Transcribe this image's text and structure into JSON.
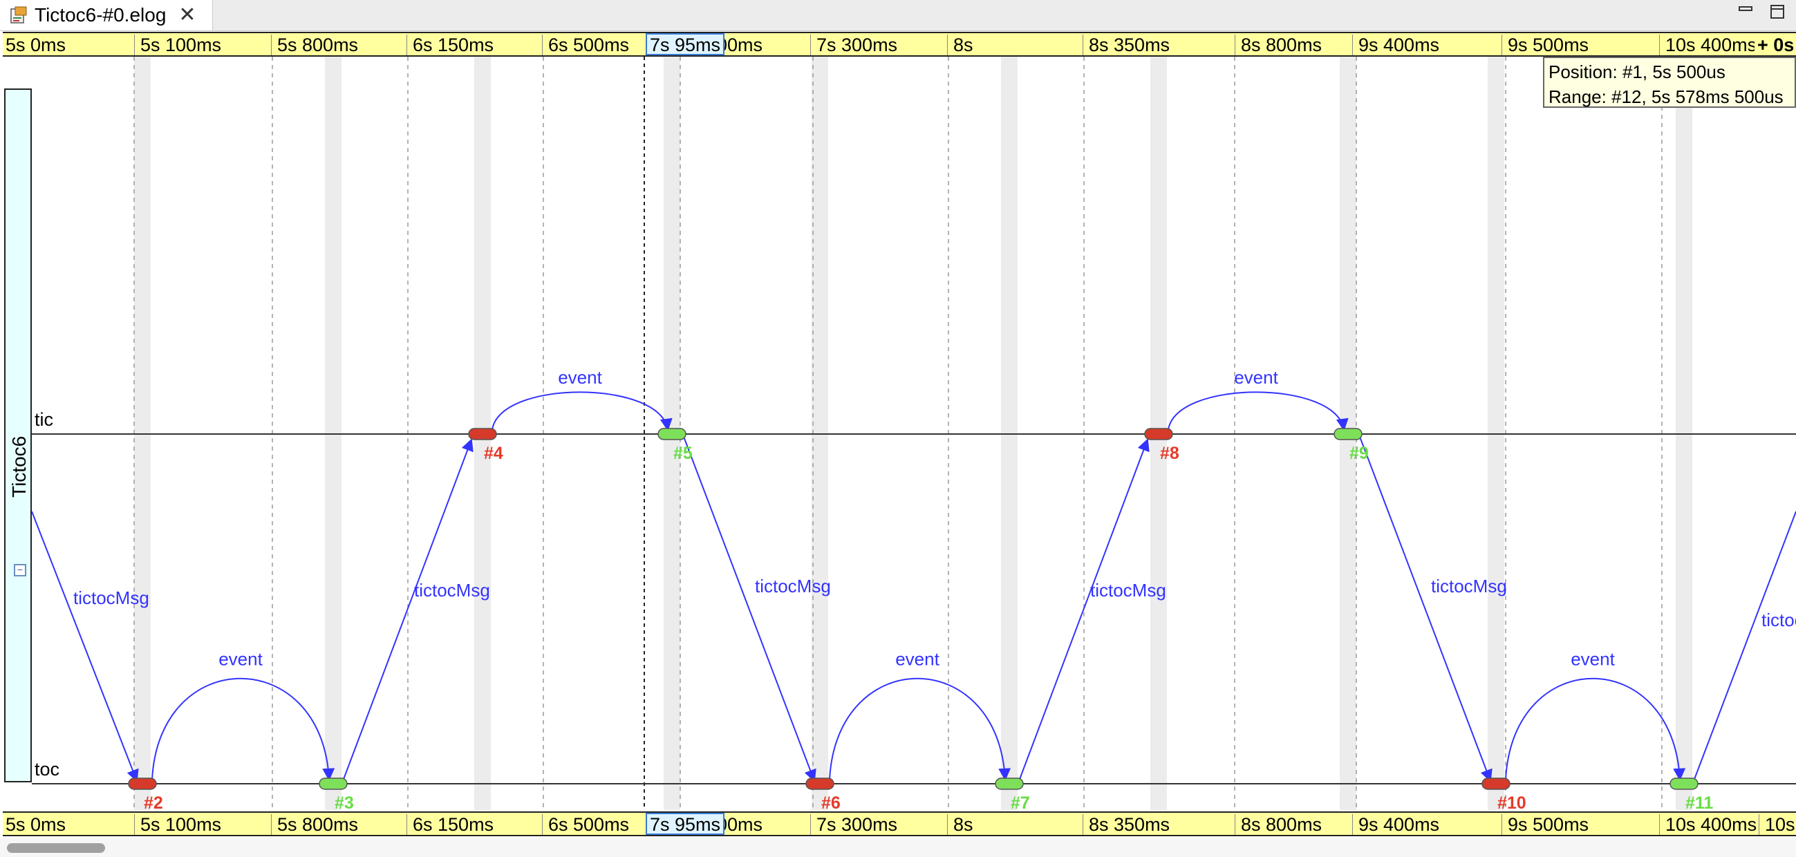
{
  "tab": {
    "title": "Tictoc6-#0.elog",
    "close_glyph": "✕",
    "icon": "elog-file-icon"
  },
  "window_controls": {
    "minimize": "minimize-icon",
    "maximize": "maximize-icon"
  },
  "ruler": {
    "ticks": [
      "5s 0ms",
      "5s 100ms",
      "5s 800ms",
      "6s 150ms",
      "6s 500ms",
      "7s 95ms",
      "7s 300ms",
      "8s",
      "8s 350ms",
      "8s 800ms",
      "9s 400ms",
      "9s 500ms",
      "10s 400ms"
    ],
    "cursor_label": "7s 95ms",
    "hidden_partial": "00ms",
    "top_end_label": "+ 0s",
    "bottom_end_label": "10s"
  },
  "info": {
    "position": "Position: #1, 5s 500us",
    "range": "Range: #12, 5s 578ms 500us"
  },
  "module": {
    "name": "Tictoc6",
    "collapse_glyph": "−"
  },
  "axes": [
    {
      "name": "tic"
    },
    {
      "name": "toc"
    }
  ],
  "events": [
    {
      "id": "#2",
      "axis": "toc",
      "kind": "red"
    },
    {
      "id": "#3",
      "axis": "toc",
      "kind": "green"
    },
    {
      "id": "#4",
      "axis": "tic",
      "kind": "red"
    },
    {
      "id": "#5",
      "axis": "tic",
      "kind": "green"
    },
    {
      "id": "#6",
      "axis": "toc",
      "kind": "red"
    },
    {
      "id": "#7",
      "axis": "toc",
      "kind": "green"
    },
    {
      "id": "#8",
      "axis": "tic",
      "kind": "red"
    },
    {
      "id": "#9",
      "axis": "tic",
      "kind": "green"
    },
    {
      "id": "#10",
      "axis": "toc",
      "kind": "red"
    },
    {
      "id": "#11",
      "axis": "toc",
      "kind": "green"
    }
  ],
  "messages": [
    {
      "label": "tictocMsg",
      "type": "send"
    },
    {
      "label": "event",
      "type": "self"
    },
    {
      "label": "tictocMsg",
      "type": "send"
    },
    {
      "label": "event",
      "type": "self"
    },
    {
      "label": "tictocMsg",
      "type": "send"
    },
    {
      "label": "event",
      "type": "self"
    },
    {
      "label": "tictocMsg",
      "type": "send"
    },
    {
      "label": "event",
      "type": "self"
    },
    {
      "label": "tictocMsg",
      "type": "send"
    },
    {
      "label": "event",
      "type": "self"
    },
    {
      "label": "tictocMsg",
      "type": "send"
    }
  ],
  "colors": {
    "ruler_bg": "#ffff9f",
    "message": "#3333ff",
    "event_red": "#d63a2a",
    "event_green": "#7ee05a",
    "label_red": "#e53a2a",
    "label_green": "#66dd44",
    "gutter": "#ececec",
    "module_bg": "#e6ffff"
  }
}
